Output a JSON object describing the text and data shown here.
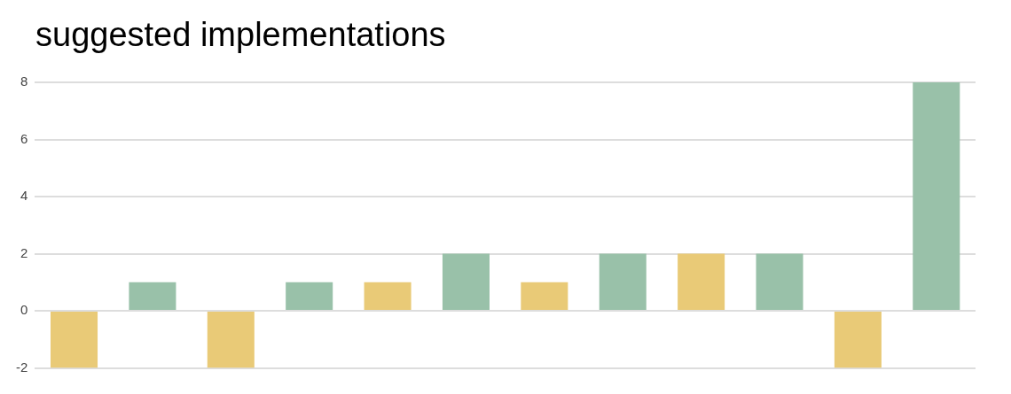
{
  "chart_data": {
    "type": "bar",
    "title": "suggested implementations",
    "categories": [
      null,
      null,
      null,
      null,
      null,
      null
    ],
    "series": [
      {
        "color": "#e9ca77",
        "values": [
          -2,
          -2,
          1,
          1,
          2,
          -2
        ]
      },
      {
        "color": "#99c1a9",
        "values": [
          1,
          1,
          2,
          2,
          2,
          8
        ]
      }
    ],
    "ylim": [
      -2,
      8
    ],
    "yticks": [
      -2,
      0,
      2,
      4,
      6,
      8
    ],
    "grid": "y",
    "legend": false
  }
}
